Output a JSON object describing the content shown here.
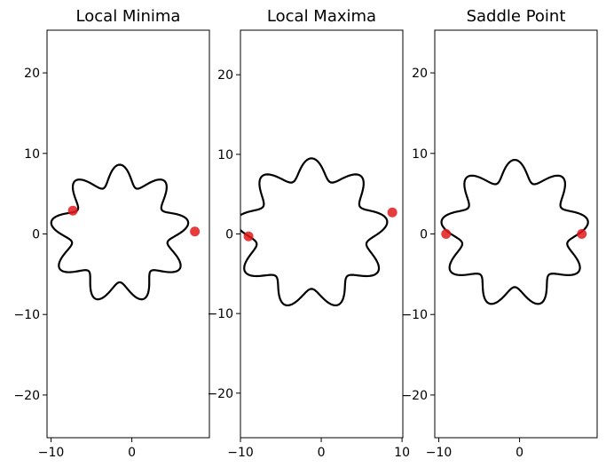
{
  "colors": {
    "curve": "#000000",
    "point": "#e31a1c"
  },
  "chart_data": [
    {
      "type": "line",
      "title": "Local Minima",
      "xlim": [
        -10.5,
        9.6
      ],
      "ylim": [
        -25.3,
        25.3
      ],
      "xticks": [
        -10,
        0
      ],
      "yticks": [
        -20,
        -10,
        0,
        10,
        20
      ],
      "xtick_labels": [
        "−10",
        "0"
      ],
      "ytick_labels": [
        "−20",
        "−10",
        "0",
        "10",
        "20"
      ],
      "curve": {
        "center": [
          -1.5,
          0
        ],
        "base_radius": 7.3,
        "amplitude": 1.3,
        "lobes": 9
      },
      "points": [
        {
          "x": -7.3,
          "y": 2.9
        },
        {
          "x": 7.8,
          "y": 0.3
        }
      ]
    },
    {
      "type": "line",
      "title": "Local Maxima",
      "xlim": [
        -10.0,
        10.1
      ],
      "ylim": [
        -25.6,
        25.6
      ],
      "xticks": [
        -10,
        0,
        10
      ],
      "yticks": [
        -20,
        -10,
        0,
        10,
        20
      ],
      "xtick_labels": [
        "−10",
        "0",
        "10"
      ],
      "ytick_labels": [
        "−20",
        "−10",
        "0",
        "10",
        "20"
      ],
      "curve": {
        "center": [
          -1.2,
          0
        ],
        "base_radius": 8.2,
        "amplitude": 1.3,
        "lobes": 9
      },
      "points": [
        {
          "x": -9.0,
          "y": -0.3
        },
        {
          "x": 8.8,
          "y": 2.7
        }
      ]
    },
    {
      "type": "line",
      "title": "Saddle Point",
      "xlim": [
        -10.5,
        9.6
      ],
      "ylim": [
        -25.3,
        25.3
      ],
      "xticks": [
        -10,
        0
      ],
      "yticks": [
        -20,
        -10,
        0,
        10,
        20
      ],
      "xtick_labels": [
        "−10",
        "0"
      ],
      "ytick_labels": [
        "−20",
        "−10",
        "0",
        "10",
        "20"
      ],
      "curve": {
        "center": [
          -0.6,
          0
        ],
        "base_radius": 7.9,
        "amplitude": 1.3,
        "lobes": 9
      },
      "points": [
        {
          "x": -9.1,
          "y": 0.0
        },
        {
          "x": 7.7,
          "y": 0.0
        }
      ]
    }
  ]
}
